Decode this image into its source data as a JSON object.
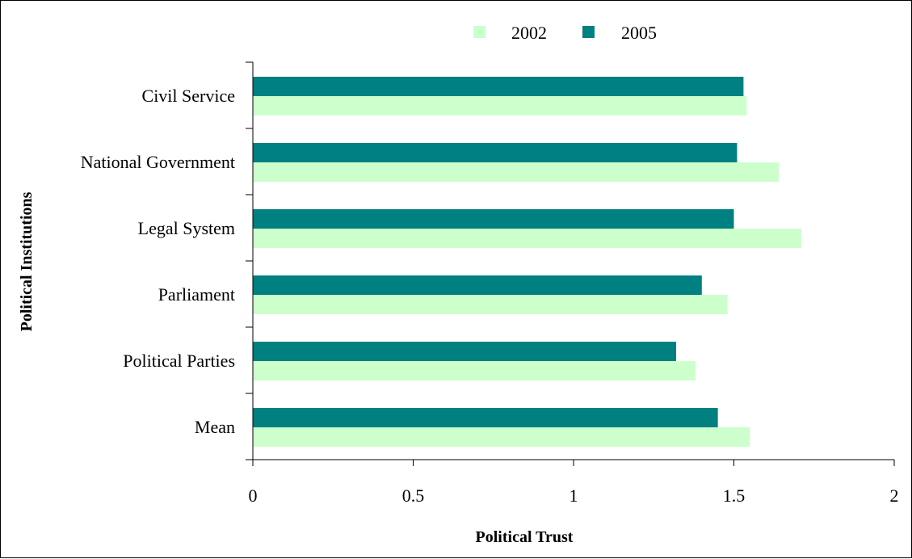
{
  "chart_data": {
    "type": "bar",
    "orientation": "horizontal",
    "title": "",
    "xlabel": "Political Trust",
    "ylabel": "Political Institutions",
    "xlim": [
      0,
      2
    ],
    "xticks": [
      "0",
      "0.5",
      "1",
      "1.5",
      "2"
    ],
    "grid": false,
    "legend_position": "top",
    "categories": [
      "Civil Service",
      "National Government",
      "Legal System",
      "Parliament",
      "Political Parties",
      "Mean"
    ],
    "series": [
      {
        "name": "2002",
        "color": "#ccffcc",
        "values": [
          1.54,
          1.64,
          1.71,
          1.48,
          1.38,
          1.55
        ]
      },
      {
        "name": "2005",
        "color": "#008080",
        "values": [
          1.53,
          1.51,
          1.5,
          1.4,
          1.32,
          1.45
        ]
      }
    ]
  }
}
